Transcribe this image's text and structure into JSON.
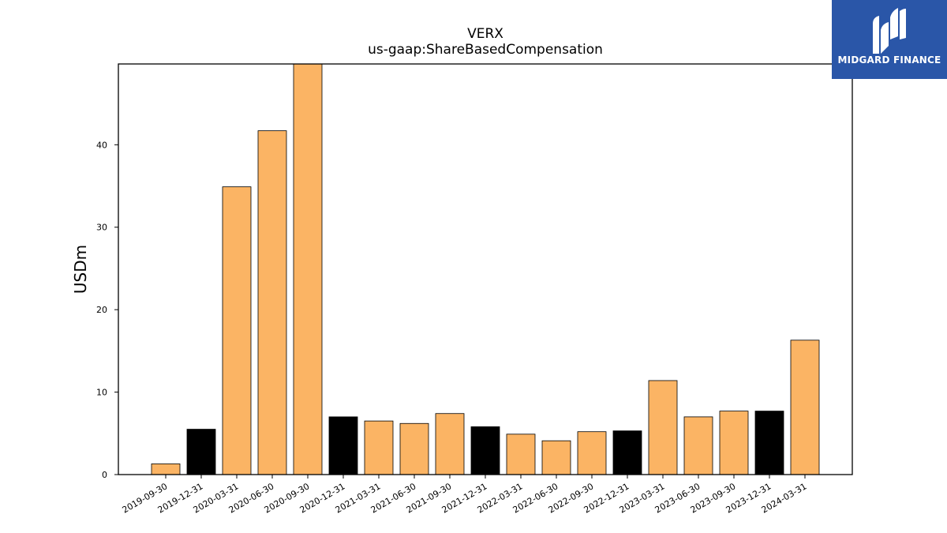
{
  "brand": {
    "name": "MIDGARD FINANCE",
    "logo_icon": "midgard-m-logo-icon",
    "background_color": "#2a56a8"
  },
  "chart_data": {
    "type": "bar",
    "title": "VERX",
    "subtitle": "us-gaap:ShareBasedCompensation",
    "xlabel": "",
    "ylabel": "USDm",
    "ylim": [
      0,
      49.8
    ],
    "yticks": [
      0,
      10,
      20,
      30,
      40
    ],
    "grid": false,
    "categories": [
      "2019-09-30",
      "2019-12-31",
      "2020-03-31",
      "2020-06-30",
      "2020-09-30",
      "2020-12-31",
      "2021-03-31",
      "2021-06-30",
      "2021-09-30",
      "2021-12-31",
      "2022-03-31",
      "2022-06-30",
      "2022-09-30",
      "2022-12-31",
      "2023-03-31",
      "2023-06-30",
      "2023-09-30",
      "2023-12-31",
      "2024-03-31"
    ],
    "values": [
      1.3,
      5.5,
      34.9,
      41.7,
      49.8,
      7.0,
      6.5,
      6.2,
      7.4,
      5.8,
      4.9,
      4.1,
      5.2,
      5.3,
      11.4,
      7.0,
      7.7,
      7.7,
      16.3
    ],
    "bar_colors": [
      "#fbb464",
      "#000000",
      "#fbb464",
      "#fbb464",
      "#fbb464",
      "#000000",
      "#fbb464",
      "#fbb464",
      "#fbb464",
      "#000000",
      "#fbb464",
      "#fbb464",
      "#fbb464",
      "#000000",
      "#fbb464",
      "#fbb464",
      "#fbb464",
      "#000000",
      "#fbb464"
    ]
  }
}
